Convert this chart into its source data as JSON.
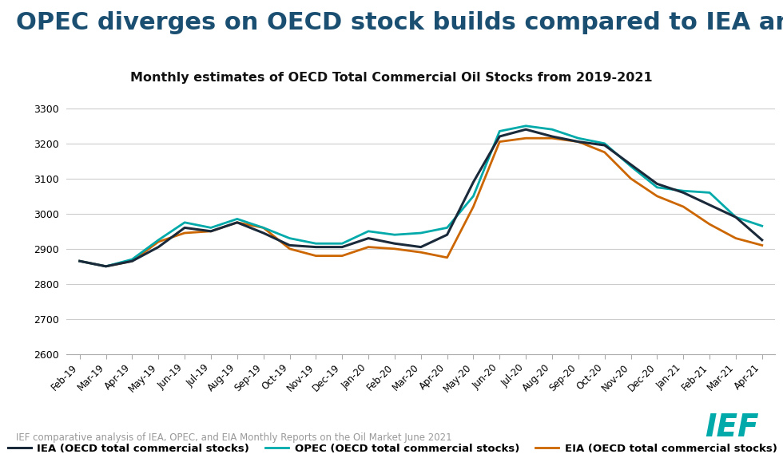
{
  "title_main": "OPEC diverges on OECD stock builds compared to IEA and EIA",
  "title_sub": "Monthly estimates of OECD Total Commercial Oil Stocks from 2019-2021",
  "main_title_color": "#1B4F72",
  "main_title_fontsize": 22,
  "sub_title_fontsize": 11.5,
  "background_color": "#ffffff",
  "x_labels": [
    "Feb-19",
    "Mar-19",
    "Apr-19",
    "May-19",
    "Jun-19",
    "Jul-19",
    "Aug-19",
    "Sep-19",
    "Oct-19",
    "Nov-19",
    "Dec-19",
    "Jan-20",
    "Feb-20",
    "Mar-20",
    "Apr-20",
    "May-20",
    "Jun-20",
    "Jul-20",
    "Aug-20",
    "Sep-20",
    "Oct-20",
    "Nov-20",
    "Dec-20",
    "Jan-21",
    "Feb-21",
    "Mar-21",
    "Apr-21"
  ],
  "ylim": [
    2600,
    3350
  ],
  "yticks": [
    2600,
    2700,
    2800,
    2900,
    3000,
    3100,
    3200,
    3300
  ],
  "iea_color": "#1B2A3B",
  "opec_color": "#00AAAA",
  "eia_color": "#CC6600",
  "iea_label": "IEA (OECD total commercial stocks)",
  "opec_label": "OPEC (OECD total commercial stocks)",
  "eia_label": "EIA (OECD total commercial stocks)",
  "footer_text": "IEF comparative analysis of IEA, OPEC, and EIA Monthly Reports on the Oil Market June 2021",
  "IEA": [
    2865,
    2850,
    2865,
    2905,
    2960,
    2950,
    2975,
    2945,
    2910,
    2905,
    2905,
    2930,
    2915,
    2905,
    2940,
    3090,
    3220,
    3240,
    3220,
    3205,
    3195,
    3140,
    3085,
    3060,
    3025,
    2990,
    2925
  ],
  "OPEC": [
    2865,
    2850,
    2870,
    2925,
    2975,
    2960,
    2985,
    2960,
    2930,
    2915,
    2915,
    2950,
    2940,
    2945,
    2960,
    3050,
    3235,
    3250,
    3240,
    3215,
    3200,
    3135,
    3075,
    3065,
    3060,
    2990,
    2965
  ],
  "EIA": [
    2865,
    2850,
    2865,
    2920,
    2945,
    2950,
    2975,
    2960,
    2900,
    2880,
    2880,
    2905,
    2900,
    2890,
    2875,
    3020,
    3205,
    3215,
    3215,
    3205,
    3175,
    3100,
    3050,
    3020,
    2970,
    2930,
    2910
  ]
}
